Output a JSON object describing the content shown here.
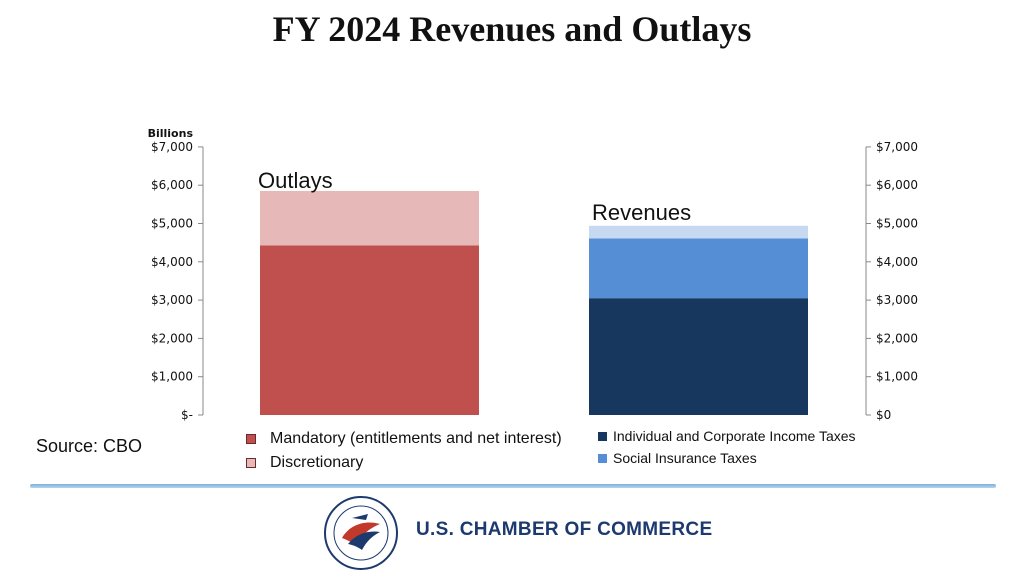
{
  "title": "FY 2024 Revenues and Outlays",
  "source": "Source: CBO",
  "brand": {
    "org_name": "U.S. CHAMBER OF COMMERCE",
    "seal_text": "THE SPIRIT OF ENTERPRISE · U.S. CHAMBER OF COMMERCE",
    "colors": {
      "navy": "#1d3a6e",
      "red": "#c0504d"
    }
  },
  "chart_data": {
    "type": "bar",
    "stacked": true,
    "units_label": "Billions",
    "categories": [
      "Outlays",
      "Revenues"
    ],
    "ylim": [
      0,
      7000
    ],
    "grid": false,
    "left_axis_ticks": [
      "$-",
      "$1,000",
      "$2,000",
      "$3,000",
      "$4,000",
      "$5,000",
      "$6,000",
      "$7,000"
    ],
    "right_axis_ticks": [
      "$0",
      "$1,000",
      "$2,000",
      "$3,000",
      "$4,000",
      "$5,000",
      "$6,000",
      "$7,000"
    ],
    "series": [
      {
        "name": "Mandatory (entitlements and net interest)",
        "category": "Outlays",
        "value": 4430,
        "color": "#c0504d"
      },
      {
        "name": "Discretionary",
        "category": "Outlays",
        "value": 1420,
        "color": "#e6b9b8"
      },
      {
        "name": "Individual and Corporate Income Taxes",
        "category": "Revenues",
        "value": 3050,
        "color": "#17375e"
      },
      {
        "name": "Social Insurance Taxes",
        "category": "Revenues",
        "value": 1560,
        "color": "#558ed5"
      },
      {
        "name": "",
        "category": "Revenues",
        "value": 330,
        "color": "#c6d9f1"
      }
    ],
    "legend_outlays": [
      "Mandatory (entitlements and net interest)",
      "Discretionary"
    ],
    "legend_revenues": [
      "Individual and Corporate Income Taxes",
      "Social Insurance Taxes"
    ]
  }
}
